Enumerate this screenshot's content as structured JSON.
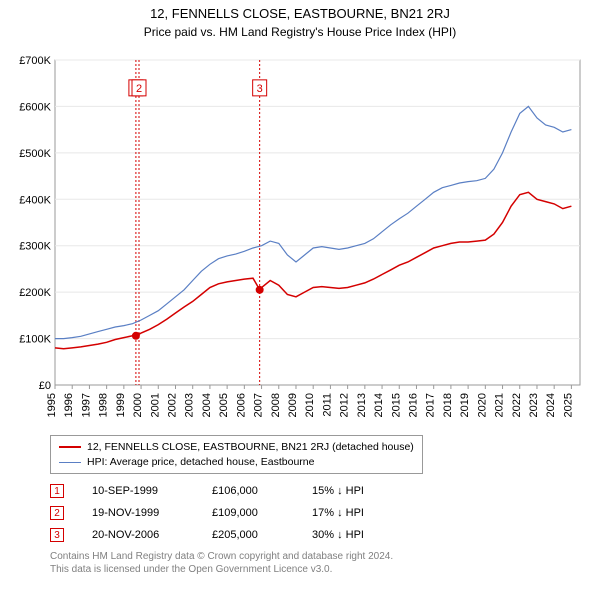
{
  "title_line1": "12, FENNELLS CLOSE, EASTBOURNE, BN21 2RJ",
  "title_line2": "Price paid vs. HM Land Registry's House Price Index (HPI)",
  "chart": {
    "type": "line",
    "background_color": "#ffffff",
    "plot_background_color": "#ffffff",
    "border_color": "#999999",
    "xlim": [
      1995,
      2025.5
    ],
    "ylim": [
      0,
      700000
    ],
    "yticks": [
      0,
      100000,
      200000,
      300000,
      400000,
      500000,
      600000,
      700000
    ],
    "ytick_labels": [
      "£0",
      "£100K",
      "£200K",
      "£300K",
      "£400K",
      "£500K",
      "£600K",
      "£700K"
    ],
    "ytick_fontsize": 11,
    "xticks": [
      1995,
      1996,
      1997,
      1998,
      1999,
      2000,
      2001,
      2002,
      2003,
      2004,
      2005,
      2006,
      2007,
      2008,
      2009,
      2010,
      2011,
      2012,
      2013,
      2014,
      2015,
      2016,
      2017,
      2018,
      2019,
      2020,
      2021,
      2022,
      2023,
      2024,
      2025
    ],
    "xtick_labels": [
      "1995",
      "1996",
      "1997",
      "1998",
      "1999",
      "2000",
      "2001",
      "2002",
      "2003",
      "2004",
      "2005",
      "2006",
      "2007",
      "2008",
      "2009",
      "2010",
      "2011",
      "2012",
      "2013",
      "2014",
      "2015",
      "2016",
      "2017",
      "2018",
      "2019",
      "2020",
      "2021",
      "2022",
      "2023",
      "2024",
      "2025"
    ],
    "xtick_fontsize": 11,
    "xtick_rotation": -90,
    "grid_color": "#e8e8e8",
    "series": [
      {
        "name": "property_series",
        "label": "12, FENNELLS CLOSE, EASTBOURNE, BN21 2RJ (detached house)",
        "color": "#d40000",
        "line_width": 1.5,
        "x": [
          1995,
          1995.5,
          1996,
          1996.5,
          1997,
          1997.5,
          1998,
          1998.5,
          1999,
          1999.5,
          1999.7,
          1999.88,
          2000,
          2000.5,
          2001,
          2001.5,
          2002,
          2002.5,
          2003,
          2003.5,
          2004,
          2004.5,
          2005,
          2005.5,
          2006,
          2006.5,
          2006.89,
          2007,
          2007.5,
          2008,
          2008.5,
          2009,
          2009.5,
          2010,
          2010.5,
          2011,
          2011.5,
          2012,
          2012.5,
          2013,
          2013.5,
          2014,
          2014.5,
          2015,
          2015.5,
          2016,
          2016.5,
          2017,
          2017.5,
          2018,
          2018.5,
          2019,
          2019.5,
          2020,
          2020.5,
          2021,
          2021.5,
          2022,
          2022.5,
          2023,
          2023.5,
          2024,
          2024.5,
          2025
        ],
        "y": [
          80000,
          78000,
          80000,
          82000,
          85000,
          88000,
          92000,
          98000,
          102000,
          106000,
          106000,
          109000,
          112000,
          120000,
          130000,
          142000,
          155000,
          168000,
          180000,
          195000,
          210000,
          218000,
          222000,
          225000,
          228000,
          230000,
          205000,
          210000,
          225000,
          215000,
          195000,
          190000,
          200000,
          210000,
          212000,
          210000,
          208000,
          210000,
          215000,
          220000,
          228000,
          238000,
          248000,
          258000,
          265000,
          275000,
          285000,
          295000,
          300000,
          305000,
          308000,
          308000,
          310000,
          312000,
          325000,
          350000,
          385000,
          410000,
          415000,
          400000,
          395000,
          390000,
          380000,
          385000
        ]
      },
      {
        "name": "hpi_series",
        "label": "HPI: Average price, detached house, Eastbourne",
        "color": "#5a7fc4",
        "line_width": 1.2,
        "x": [
          1995,
          1995.5,
          1996,
          1996.5,
          1997,
          1997.5,
          1998,
          1998.5,
          1999,
          1999.5,
          2000,
          2000.5,
          2001,
          2001.5,
          2002,
          2002.5,
          2003,
          2003.5,
          2004,
          2004.5,
          2005,
          2005.5,
          2006,
          2006.5,
          2007,
          2007.5,
          2008,
          2008.5,
          2009,
          2009.5,
          2010,
          2010.5,
          2011,
          2011.5,
          2012,
          2012.5,
          2013,
          2013.5,
          2014,
          2014.5,
          2015,
          2015.5,
          2016,
          2016.5,
          2017,
          2017.5,
          2018,
          2018.5,
          2019,
          2019.5,
          2020,
          2020.5,
          2021,
          2021.5,
          2022,
          2022.5,
          2023,
          2023.5,
          2024,
          2024.5,
          2025
        ],
        "y": [
          100000,
          100000,
          102000,
          105000,
          110000,
          115000,
          120000,
          125000,
          128000,
          132000,
          140000,
          150000,
          160000,
          175000,
          190000,
          205000,
          225000,
          245000,
          260000,
          272000,
          278000,
          282000,
          288000,
          295000,
          300000,
          310000,
          305000,
          280000,
          265000,
          280000,
          295000,
          298000,
          295000,
          292000,
          295000,
          300000,
          305000,
          315000,
          330000,
          345000,
          358000,
          370000,
          385000,
          400000,
          415000,
          425000,
          430000,
          435000,
          438000,
          440000,
          445000,
          465000,
          500000,
          545000,
          585000,
          600000,
          575000,
          560000,
          555000,
          545000,
          550000
        ]
      }
    ],
    "markers": [
      {
        "id": "1",
        "x": 1999.7,
        "y": 106000,
        "label_y": 640000,
        "date": "10-SEP-1999",
        "price": "£106,000",
        "note": "15% ↓ HPI",
        "color": "#d40000",
        "dot": true
      },
      {
        "id": "2",
        "x": 1999.88,
        "y": 109000,
        "label_y": 640000,
        "date": "19-NOV-1999",
        "price": "£109,000",
        "note": "17% ↓ HPI",
        "color": "#d40000",
        "dot": false
      },
      {
        "id": "3",
        "x": 2006.89,
        "y": 205000,
        "label_y": 640000,
        "date": "20-NOV-2006",
        "price": "£205,000",
        "note": "30% ↓ HPI",
        "color": "#d40000",
        "dot": true
      }
    ],
    "marker_line_color": "#d40000",
    "marker_line_dash": "2,2",
    "marker_box_border": "#d40000",
    "marker_box_fill": "#ffffff",
    "marker_box_text_color": "#d40000",
    "marker_dot_radius": 4
  },
  "legend": {
    "items": [
      {
        "color": "#d40000",
        "width": 2,
        "label": "12, FENNELLS CLOSE, EASTBOURNE, BN21 2RJ (detached house)"
      },
      {
        "color": "#5a7fc4",
        "width": 1.2,
        "label": "HPI: Average price, detached house, Eastbourne"
      }
    ]
  },
  "footer_line1": "Contains HM Land Registry data © Crown copyright and database right 2024.",
  "footer_line2": "This data is licensed under the Open Government Licence v3.0."
}
